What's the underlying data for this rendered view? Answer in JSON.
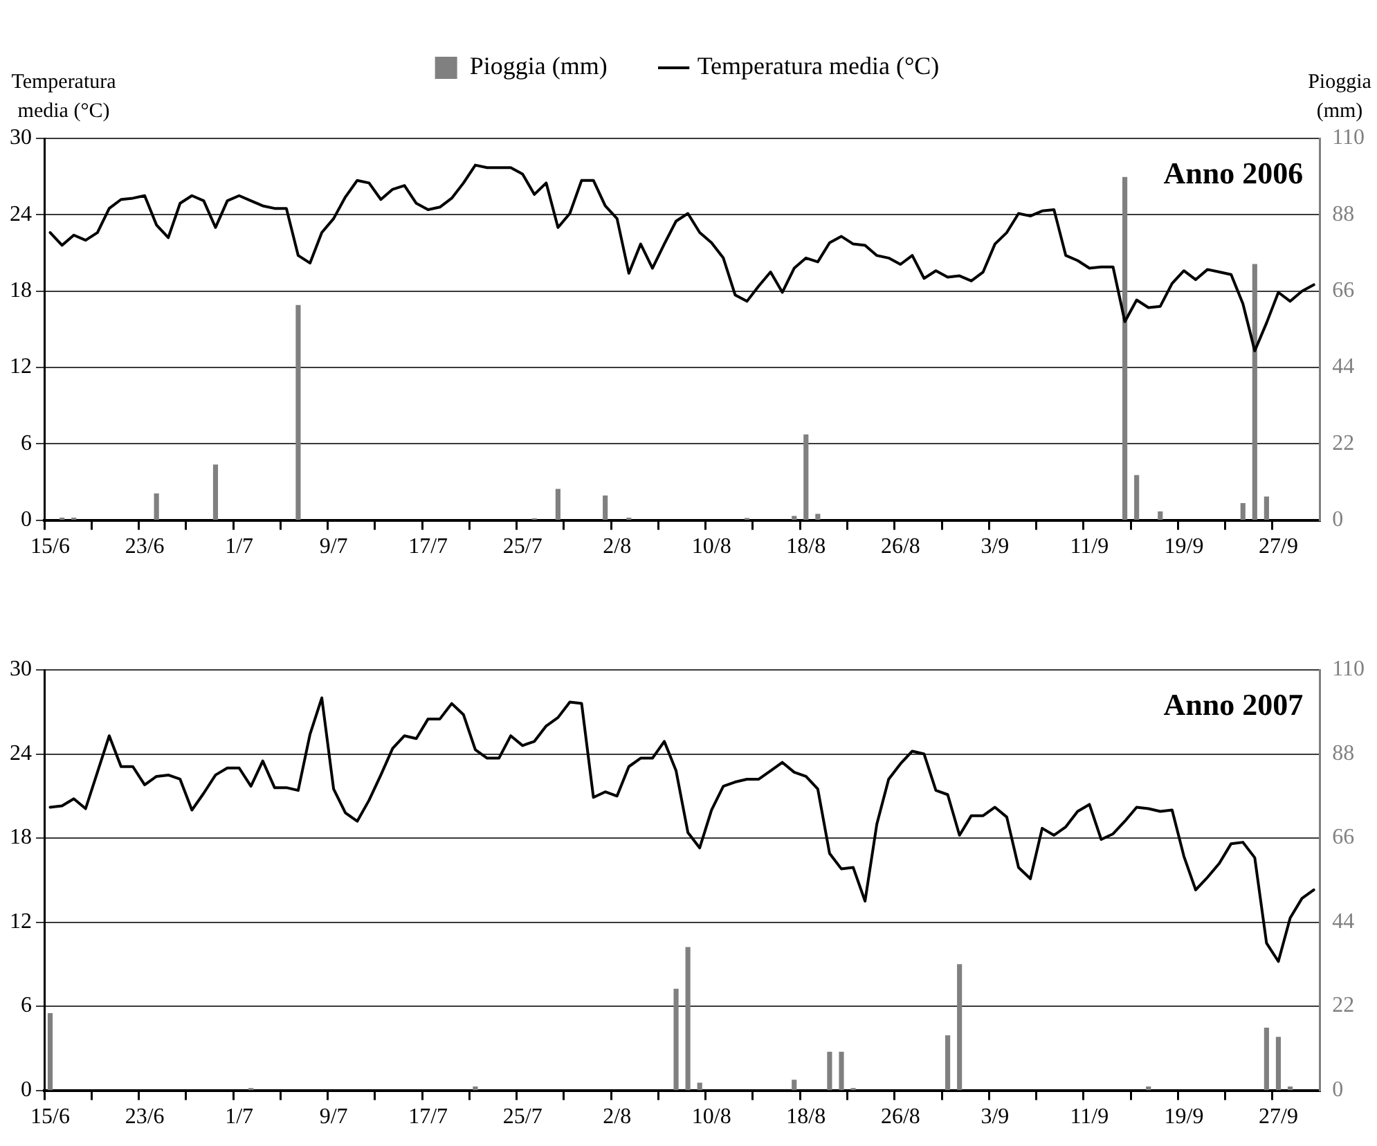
{
  "chart_data": [
    {
      "type": "bar",
      "title": "Anno 2006",
      "ylabel": "Temperatura media (°C)",
      "y2label": "Pioggia (mm)",
      "categories": [
        "15/6",
        null,
        null,
        null,
        null,
        null,
        null,
        null,
        "23/6",
        null,
        null,
        null,
        null,
        null,
        null,
        null,
        "1/7",
        null,
        null,
        null,
        null,
        null,
        null,
        null,
        "9/7",
        null,
        null,
        null,
        null,
        null,
        null,
        null,
        "17/7",
        null,
        null,
        null,
        null,
        null,
        null,
        null,
        "25/7",
        null,
        null,
        null,
        null,
        null,
        null,
        null,
        "2/8",
        null,
        null,
        null,
        null,
        null,
        null,
        null,
        "10/8",
        null,
        null,
        null,
        null,
        null,
        null,
        null,
        "18/8",
        null,
        null,
        null,
        null,
        null,
        null,
        null,
        "26/8",
        null,
        null,
        null,
        null,
        null,
        null,
        null,
        "3/9",
        null,
        null,
        null,
        null,
        null,
        null,
        null,
        "11/9",
        null,
        null,
        null,
        null,
        null,
        null,
        null,
        "19/9",
        null,
        null,
        null,
        null,
        null,
        null,
        null,
        "27/9",
        null,
        null,
        null
      ],
      "series": [
        {
          "name": "Pioggia (mm)",
          "axis": "y2",
          "color": "#808080",
          "values": [
            0,
            0.7,
            0.7,
            0,
            0,
            0,
            0,
            0,
            0,
            7.7,
            0,
            0,
            0,
            0,
            16.0,
            0,
            0,
            0,
            0,
            0,
            0,
            62.0,
            0,
            0,
            0,
            0,
            0,
            0,
            0,
            0,
            0,
            0,
            0,
            0,
            0,
            0,
            0,
            0,
            0,
            0,
            0,
            0.5,
            0,
            9.0,
            0,
            0,
            0,
            7.1,
            0,
            0.7,
            0,
            0,
            0,
            0,
            0,
            0,
            0,
            0,
            0,
            0.6,
            0,
            0,
            0,
            1.2,
            24.7,
            1.8,
            0,
            0,
            0,
            0,
            0,
            0,
            0,
            0,
            0,
            0,
            0,
            0,
            0,
            0,
            0,
            0,
            0,
            0,
            0,
            0,
            0,
            0,
            0,
            0,
            0,
            98.9,
            13.0,
            0,
            2.5,
            0,
            0,
            0,
            0,
            0,
            0,
            4.9,
            73.8,
            6.8,
            0,
            0,
            0,
            0
          ]
        },
        {
          "name": "Temperatura media (°C)",
          "type": "line",
          "color": "#000000",
          "values": [
            22.6,
            21.6,
            22.4,
            22.0,
            22.6,
            24.5,
            25.2,
            25.3,
            25.5,
            23.2,
            22.2,
            24.9,
            25.5,
            25.1,
            23.0,
            25.1,
            25.5,
            25.1,
            24.7,
            24.5,
            24.5,
            20.8,
            20.2,
            22.6,
            23.7,
            25.4,
            26.7,
            26.5,
            25.2,
            26.0,
            26.3,
            24.9,
            24.4,
            24.6,
            25.3,
            26.5,
            27.9,
            27.7,
            27.7,
            27.7,
            27.2,
            25.6,
            26.5,
            23.0,
            24.1,
            26.7,
            26.7,
            24.7,
            23.7,
            19.4,
            21.7,
            19.8,
            21.7,
            23.5,
            24.1,
            22.6,
            21.8,
            20.6,
            17.7,
            17.2,
            18.4,
            19.5,
            17.9,
            19.8,
            20.6,
            20.3,
            21.8,
            22.3,
            21.7,
            21.6,
            20.8,
            20.6,
            20.1,
            20.8,
            19.0,
            19.6,
            19.1,
            19.2,
            18.8,
            19.5,
            21.7,
            22.6,
            24.1,
            23.9,
            24.3,
            24.4,
            20.8,
            20.4,
            19.8,
            19.9,
            19.9,
            15.6,
            17.3,
            16.7,
            16.8,
            18.6,
            19.6,
            18.9,
            19.7,
            19.5,
            19.3,
            17.0,
            13.3,
            15.5,
            17.9,
            17.2,
            18.0,
            18.5
          ]
        }
      ],
      "ylim": [
        0,
        30
      ],
      "yticks": [
        0,
        6,
        12,
        18,
        24,
        30
      ],
      "y2lim": [
        0,
        110
      ],
      "y2ticks": [
        0,
        22,
        44,
        66,
        88,
        110
      ],
      "grid": "y",
      "legend": "top",
      "marker": "none",
      "line_style": "solid"
    },
    {
      "type": "bar",
      "title": "Anno 2007",
      "categories": [
        "15/6",
        null,
        null,
        null,
        null,
        null,
        null,
        null,
        "23/6",
        null,
        null,
        null,
        null,
        null,
        null,
        null,
        "1/7",
        null,
        null,
        null,
        null,
        null,
        null,
        null,
        "9/7",
        null,
        null,
        null,
        null,
        null,
        null,
        null,
        "17/7",
        null,
        null,
        null,
        null,
        null,
        null,
        null,
        "25/7",
        null,
        null,
        null,
        null,
        null,
        null,
        null,
        "2/8",
        null,
        null,
        null,
        null,
        null,
        null,
        null,
        "10/8",
        null,
        null,
        null,
        null,
        null,
        null,
        null,
        "18/8",
        null,
        null,
        null,
        null,
        null,
        null,
        null,
        "26/8",
        null,
        null,
        null,
        null,
        null,
        null,
        null,
        "3/9",
        null,
        null,
        null,
        null,
        null,
        null,
        null,
        "11/9",
        null,
        null,
        null,
        null,
        null,
        null,
        null,
        "19/9",
        null,
        null,
        null,
        null,
        null,
        null,
        null,
        "27/9",
        null,
        null,
        null
      ],
      "series": [
        {
          "axis": "y2",
          "color": "#808080",
          "values": [
            20.2,
            0,
            0,
            0,
            0,
            0,
            0,
            0,
            0,
            0,
            0,
            0,
            0,
            0,
            0,
            0,
            0,
            0.6,
            0,
            0,
            0,
            0,
            0,
            0,
            0,
            0,
            0,
            0,
            0,
            0,
            0,
            0,
            0,
            0,
            0,
            0,
            1.0,
            0,
            0,
            0,
            0,
            0,
            0,
            0,
            0,
            0,
            0,
            0,
            0,
            0,
            0,
            0,
            0,
            26.6,
            37.5,
            2.0,
            0,
            0,
            0,
            0,
            0,
            0,
            0,
            2.8,
            0,
            0,
            10.1,
            10.1,
            0.6,
            0,
            0,
            0,
            0,
            0,
            0,
            0,
            14.4,
            33.0,
            0,
            0,
            0,
            0,
            0,
            0,
            0,
            0,
            0,
            0,
            0,
            0,
            0,
            0,
            0,
            1.0,
            0,
            0,
            0,
            0,
            0,
            0,
            0,
            0,
            0,
            16.4,
            14.0,
            1.0,
            0,
            0
          ]
        },
        {
          "type": "line",
          "color": "#000000",
          "values": [
            20.2,
            20.3,
            20.8,
            20.1,
            22.7,
            25.3,
            23.1,
            23.1,
            21.8,
            22.4,
            22.5,
            22.2,
            20.0,
            21.2,
            22.5,
            23.0,
            23.0,
            21.7,
            23.5,
            21.6,
            21.6,
            21.4,
            25.4,
            28.0,
            21.5,
            19.8,
            19.2,
            20.7,
            22.5,
            24.4,
            25.3,
            25.1,
            26.5,
            26.5,
            27.6,
            26.8,
            24.3,
            23.7,
            23.7,
            25.3,
            24.6,
            24.9,
            26.0,
            26.6,
            27.7,
            27.6,
            20.9,
            21.3,
            21.0,
            23.1,
            23.7,
            23.7,
            24.9,
            22.8,
            18.4,
            17.3,
            20.0,
            21.7,
            22.0,
            22.2,
            22.2,
            22.8,
            23.4,
            22.7,
            22.4,
            21.5,
            16.9,
            15.8,
            15.9,
            13.5,
            19.0,
            22.2,
            23.3,
            24.2,
            24.0,
            21.4,
            21.1,
            18.2,
            19.6,
            19.6,
            20.2,
            19.5,
            15.9,
            15.1,
            18.7,
            18.2,
            18.8,
            19.9,
            20.4,
            17.9,
            18.3,
            19.2,
            20.2,
            20.1,
            19.9,
            20.0,
            16.7,
            14.3,
            15.2,
            16.2,
            17.6,
            17.7,
            16.6,
            10.5,
            9.2,
            12.3,
            13.7,
            14.3
          ]
        }
      ],
      "ylim": [
        0,
        30
      ],
      "yticks": [
        0,
        6,
        12,
        18,
        24,
        30
      ],
      "y2lim": [
        0,
        110
      ],
      "y2ticks": [
        0,
        22,
        44,
        66,
        88,
        110
      ],
      "grid": "y",
      "marker": "none",
      "line_style": "solid"
    }
  ]
}
